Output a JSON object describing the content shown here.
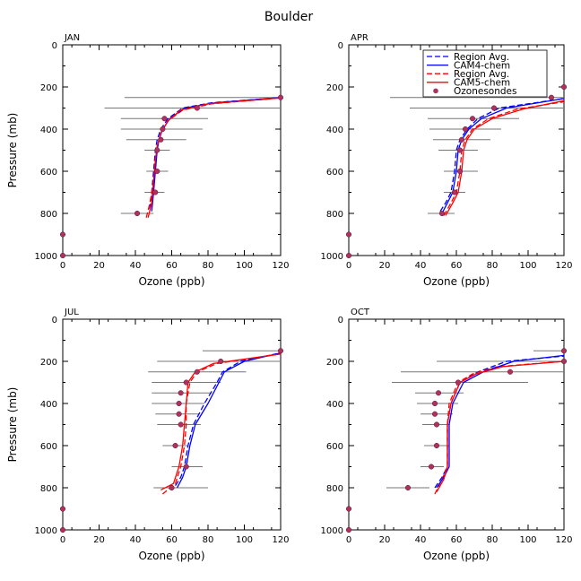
{
  "chart_data": {
    "type": "line",
    "title": "Boulder",
    "xlabel": "Ozone (ppb)",
    "ylabel": "Pressure (mb)",
    "xlim": [
      0,
      120
    ],
    "ylim": [
      1000,
      0
    ],
    "xticks": [
      0,
      20,
      40,
      60,
      80,
      100,
      120
    ],
    "yticks": [
      0,
      200,
      400,
      600,
      800,
      1000
    ],
    "legend": [
      {
        "label": "Region Avg.",
        "color": "#0000ff",
        "dash": true
      },
      {
        "label": "CAM4-chem",
        "color": "#0000ff",
        "dash": false
      },
      {
        "label": "Region Avg.",
        "color": "#ff0000",
        "dash": true
      },
      {
        "label": "CAM5-chem",
        "color": "#ff0000",
        "dash": false
      },
      {
        "label": "Ozonesondes",
        "color": "#b03060",
        "marker": true
      }
    ],
    "colors": {
      "cam4": "#0000ff",
      "cam5": "#ff0000",
      "obs": "#b03060",
      "bar": "#777777"
    },
    "panels": [
      {
        "label": "JAN",
        "series": {
          "cam4_avg": [
            [
              48,
              780
            ],
            [
              49,
              700
            ],
            [
              50,
              600
            ],
            [
              51,
              500
            ],
            [
              52,
              450
            ],
            [
              54,
              400
            ],
            [
              58,
              350
            ],
            [
              66,
              300
            ],
            [
              82,
              275
            ],
            [
              120,
              250
            ]
          ],
          "cam4": [
            [
              49,
              790
            ],
            [
              50,
              700
            ],
            [
              51,
              600
            ],
            [
              52,
              500
            ],
            [
              53,
              450
            ],
            [
              55,
              400
            ],
            [
              59,
              350
            ],
            [
              67,
              300
            ],
            [
              84,
              275
            ],
            [
              120,
              250
            ]
          ],
          "cam5_avg": [
            [
              46,
              820
            ],
            [
              48,
              750
            ],
            [
              50,
              650
            ],
            [
              51,
              550
            ],
            [
              52,
              480
            ],
            [
              54,
              420
            ],
            [
              58,
              360
            ],
            [
              66,
              310
            ],
            [
              82,
              280
            ],
            [
              120,
              252
            ]
          ],
          "cam5": [
            [
              47,
              820
            ],
            [
              49,
              750
            ],
            [
              50,
              650
            ],
            [
              51,
              550
            ],
            [
              52,
              480
            ],
            [
              54,
              420
            ],
            [
              58,
              360
            ],
            [
              65,
              310
            ],
            [
              80,
              280
            ],
            [
              120,
              252
            ]
          ]
        },
        "obs": [
          {
            "p": 250,
            "v": 120,
            "lo": 34,
            "hi": 120
          },
          {
            "p": 300,
            "v": 74,
            "lo": 23,
            "hi": 120
          },
          {
            "p": 350,
            "v": 56,
            "lo": 32,
            "hi": 80
          },
          {
            "p": 400,
            "v": 55,
            "lo": 32,
            "hi": 77
          },
          {
            "p": 450,
            "v": 54,
            "lo": 35,
            "hi": 68
          },
          {
            "p": 500,
            "v": 52,
            "lo": 45,
            "hi": 59
          },
          {
            "p": 600,
            "v": 52,
            "lo": 46,
            "hi": 58
          },
          {
            "p": 700,
            "v": 51,
            "lo": 45,
            "hi": 56
          },
          {
            "p": 800,
            "v": 41,
            "lo": 32,
            "hi": 50
          },
          {
            "p": 900,
            "v": 0,
            "lo": 0,
            "hi": 0
          },
          {
            "p": 1000,
            "v": 0,
            "lo": 0,
            "hi": 0
          }
        ]
      },
      {
        "label": "APR",
        "series": {
          "cam4_avg": [
            [
              51,
              790
            ],
            [
              54,
              750
            ],
            [
              57,
              700
            ],
            [
              59,
              600
            ],
            [
              60,
              500
            ],
            [
              62,
              450
            ],
            [
              66,
              400
            ],
            [
              72,
              350
            ],
            [
              84,
              300
            ],
            [
              120,
              255
            ]
          ],
          "cam4": [
            [
              52,
              800
            ],
            [
              55,
              750
            ],
            [
              58,
              700
            ],
            [
              60,
              600
            ],
            [
              61,
              500
            ],
            [
              63,
              450
            ],
            [
              67,
              400
            ],
            [
              74,
              350
            ],
            [
              88,
              300
            ],
            [
              120,
              255
            ]
          ],
          "cam5_avg": [
            [
              53,
              810
            ],
            [
              57,
              750
            ],
            [
              60,
              700
            ],
            [
              62,
              600
            ],
            [
              63,
              500
            ],
            [
              65,
              450
            ],
            [
              69,
              400
            ],
            [
              78,
              350
            ],
            [
              94,
              305
            ],
            [
              120,
              270
            ]
          ],
          "cam5": [
            [
              54,
              810
            ],
            [
              58,
              750
            ],
            [
              61,
              700
            ],
            [
              63,
              600
            ],
            [
              64,
              500
            ],
            [
              66,
              450
            ],
            [
              70,
              400
            ],
            [
              80,
              350
            ],
            [
              97,
              305
            ],
            [
              120,
              265
            ]
          ]
        },
        "obs": [
          {
            "p": 200,
            "v": 120,
            "lo": 120,
            "hi": 120
          },
          {
            "p": 250,
            "v": 113,
            "lo": 23,
            "hi": 120
          },
          {
            "p": 300,
            "v": 81,
            "lo": 34,
            "hi": 120
          },
          {
            "p": 350,
            "v": 69,
            "lo": 44,
            "hi": 95
          },
          {
            "p": 400,
            "v": 65,
            "lo": 45,
            "hi": 85
          },
          {
            "p": 450,
            "v": 63,
            "lo": 47,
            "hi": 79
          },
          {
            "p": 500,
            "v": 62,
            "lo": 50,
            "hi": 72
          },
          {
            "p": 600,
            "v": 62,
            "lo": 53,
            "hi": 72
          },
          {
            "p": 700,
            "v": 59,
            "lo": 53,
            "hi": 65
          },
          {
            "p": 800,
            "v": 52,
            "lo": 44,
            "hi": 59
          },
          {
            "p": 900,
            "v": 0,
            "lo": 0,
            "hi": 0
          },
          {
            "p": 1000,
            "v": 0,
            "lo": 0,
            "hi": 0
          }
        ]
      },
      {
        "label": "JUL",
        "series": {
          "cam4_avg": [
            [
              62,
              790
            ],
            [
              65,
              750
            ],
            [
              67,
              700
            ],
            [
              69,
              600
            ],
            [
              72,
              500
            ],
            [
              78,
              400
            ],
            [
              85,
              300
            ],
            [
              88,
              250
            ],
            [
              98,
              200
            ],
            [
              120,
              160
            ]
          ],
          "cam4": [
            [
              63,
              800
            ],
            [
              66,
              750
            ],
            [
              68,
              700
            ],
            [
              70,
              600
            ],
            [
              73,
              500
            ],
            [
              80,
              400
            ],
            [
              86,
              300
            ],
            [
              89,
              250
            ],
            [
              100,
              200
            ],
            [
              120,
              160
            ]
          ],
          "cam5_avg": [
            [
              55,
              830
            ],
            [
              62,
              780
            ],
            [
              65,
              700
            ],
            [
              67,
              600
            ],
            [
              68,
              500
            ],
            [
              68,
              400
            ],
            [
              70,
              300
            ],
            [
              74,
              250
            ],
            [
              85,
              210
            ],
            [
              120,
              165
            ]
          ],
          "cam5": [
            [
              54,
              810
            ],
            [
              61,
              780
            ],
            [
              64,
              700
            ],
            [
              66,
              600
            ],
            [
              67,
              500
            ],
            [
              68,
              400
            ],
            [
              69,
              300
            ],
            [
              73,
              250
            ],
            [
              83,
              210
            ],
            [
              120,
              165
            ]
          ]
        },
        "obs": [
          {
            "p": 150,
            "v": 120,
            "lo": 77,
            "hi": 120
          },
          {
            "p": 200,
            "v": 87,
            "lo": 52,
            "hi": 120
          },
          {
            "p": 250,
            "v": 74,
            "lo": 47,
            "hi": 101
          },
          {
            "p": 300,
            "v": 68,
            "lo": 49,
            "hi": 87
          },
          {
            "p": 350,
            "v": 65,
            "lo": 49,
            "hi": 82
          },
          {
            "p": 400,
            "v": 64,
            "lo": 49,
            "hi": 78
          },
          {
            "p": 450,
            "v": 64,
            "lo": 51,
            "hi": 75
          },
          {
            "p": 500,
            "v": 65,
            "lo": 52,
            "hi": 76
          },
          {
            "p": 600,
            "v": 62,
            "lo": 55,
            "hi": 69
          },
          {
            "p": 700,
            "v": 68,
            "lo": 60,
            "hi": 77
          },
          {
            "p": 800,
            "v": 60,
            "lo": 50,
            "hi": 80
          },
          {
            "p": 900,
            "v": 0,
            "lo": 0,
            "hi": 0
          },
          {
            "p": 1000,
            "v": 0,
            "lo": 0,
            "hi": 0
          }
        ]
      },
      {
        "label": "OCT",
        "series": {
          "cam4_avg": [
            [
              48,
              800
            ],
            [
              52,
              750
            ],
            [
              55,
              700
            ],
            [
              55,
              600
            ],
            [
              55,
              500
            ],
            [
              57,
              400
            ],
            [
              62,
              300
            ],
            [
              72,
              250
            ],
            [
              88,
              200
            ],
            [
              120,
              175
            ]
          ],
          "cam4": [
            [
              49,
              800
            ],
            [
              53,
              750
            ],
            [
              56,
              700
            ],
            [
              56,
              600
            ],
            [
              56,
              500
            ],
            [
              58,
              400
            ],
            [
              64,
              300
            ],
            [
              75,
              250
            ],
            [
              92,
              200
            ],
            [
              120,
              172
            ]
          ],
          "cam5_avg": [
            [
              48,
              830
            ],
            [
              52,
              760
            ],
            [
              55,
              700
            ],
            [
              55,
              600
            ],
            [
              55,
              500
            ],
            [
              56,
              400
            ],
            [
              61,
              300
            ],
            [
              69,
              260
            ],
            [
              83,
              225
            ],
            [
              120,
              200
            ]
          ],
          "cam5": [
            [
              49,
              820
            ],
            [
              53,
              760
            ],
            [
              55,
              700
            ],
            [
              55,
              600
            ],
            [
              55,
              500
            ],
            [
              57,
              400
            ],
            [
              62,
              300
            ],
            [
              71,
              260
            ],
            [
              86,
              225
            ],
            [
              120,
              200
            ]
          ]
        },
        "obs": [
          {
            "p": 150,
            "v": 120,
            "lo": 103,
            "hi": 120
          },
          {
            "p": 200,
            "v": 120,
            "lo": 49,
            "hi": 120
          },
          {
            "p": 250,
            "v": 90,
            "lo": 29,
            "hi": 120
          },
          {
            "p": 300,
            "v": 61,
            "lo": 24,
            "hi": 100
          },
          {
            "p": 350,
            "v": 50,
            "lo": 37,
            "hi": 64
          },
          {
            "p": 400,
            "v": 48,
            "lo": 38,
            "hi": 61
          },
          {
            "p": 450,
            "v": 48,
            "lo": 40,
            "hi": 58
          },
          {
            "p": 500,
            "v": 49,
            "lo": 41,
            "hi": 56
          },
          {
            "p": 600,
            "v": 49,
            "lo": 42,
            "hi": 56
          },
          {
            "p": 700,
            "v": 46,
            "lo": 40,
            "hi": 53
          },
          {
            "p": 800,
            "v": 33,
            "lo": 21,
            "hi": 45
          },
          {
            "p": 900,
            "v": 0,
            "lo": 0,
            "hi": 0
          },
          {
            "p": 1000,
            "v": 0,
            "lo": 0,
            "hi": 0
          }
        ]
      }
    ]
  }
}
